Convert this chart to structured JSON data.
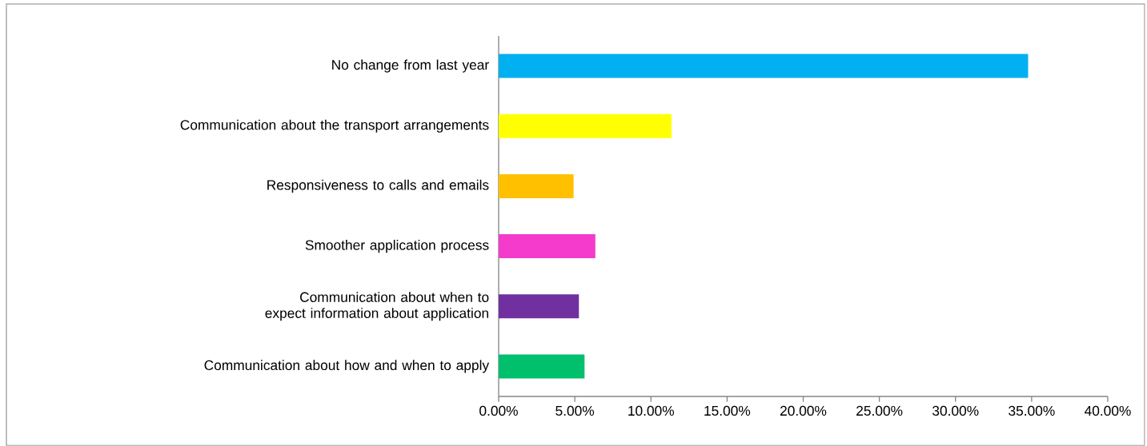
{
  "chart_data": {
    "type": "bar",
    "orientation": "horizontal",
    "categories": [
      "No change from last year",
      "Communication about the transport arrangements",
      "Responsiveness to calls and emails",
      "Smoother application process",
      "Communication about when to expect information about application",
      "Communication about how and when to apply"
    ],
    "values": [
      34.77,
      11.35,
      4.92,
      6.35,
      5.27,
      5.64
    ],
    "colors": [
      "#00b0f0",
      "#ffff00",
      "#ffc000",
      "#f43bcb",
      "#7030a0",
      "#00c06e"
    ],
    "xlim": [
      0,
      40
    ],
    "xticks": [
      {
        "value": 0,
        "label": "0.00%"
      },
      {
        "value": 5,
        "label": "5.00%"
      },
      {
        "value": 10,
        "label": "10.00%"
      },
      {
        "value": 15,
        "label": "15.00%"
      },
      {
        "value": 20,
        "label": "20.00%"
      },
      {
        "value": 25,
        "label": "25.00%"
      },
      {
        "value": 30,
        "label": "30.00%"
      },
      {
        "value": 35,
        "label": "35.00%"
      },
      {
        "value": 40,
        "label": "40.00%"
      }
    ],
    "grid": false
  }
}
